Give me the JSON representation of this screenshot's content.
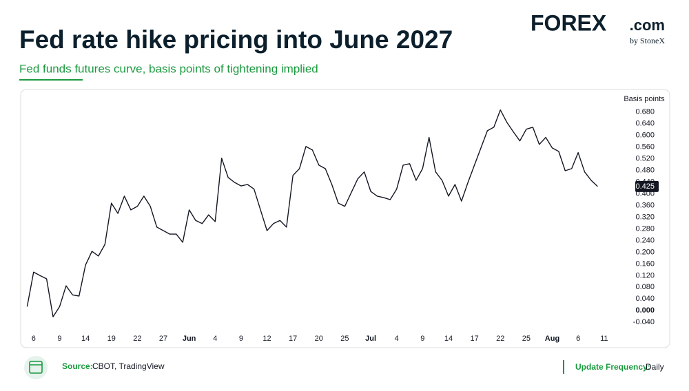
{
  "header": {
    "title": "Fed rate hike pricing into June 2027",
    "subtitle": "Fed funds futures curve, basis points of tightening implied"
  },
  "logo": {
    "name": "FOREX",
    "domain": ".com",
    "byline": "by StoneX"
  },
  "chart_data": {
    "type": "line",
    "y_label": "Basis points",
    "yaxis_position": "right",
    "grid": false,
    "xlim": [
      -1,
      92
    ],
    "ylim": [
      -0.07,
      0.75
    ],
    "xticks": [
      {
        "value": 1,
        "label": "6"
      },
      {
        "value": 5,
        "label": "9"
      },
      {
        "value": 9,
        "label": "14"
      },
      {
        "value": 13,
        "label": "19"
      },
      {
        "value": 17,
        "label": "22"
      },
      {
        "value": 21,
        "label": "27"
      },
      {
        "value": 25,
        "label": "Jun"
      },
      {
        "value": 29,
        "label": "4"
      },
      {
        "value": 33,
        "label": "9"
      },
      {
        "value": 37,
        "label": "12"
      },
      {
        "value": 41,
        "label": "17"
      },
      {
        "value": 45,
        "label": "20"
      },
      {
        "value": 49,
        "label": "25"
      },
      {
        "value": 53,
        "label": "Jul"
      },
      {
        "value": 57,
        "label": "4"
      },
      {
        "value": 61,
        "label": "9"
      },
      {
        "value": 65,
        "label": "14"
      },
      {
        "value": 69,
        "label": "17"
      },
      {
        "value": 73,
        "label": "22"
      },
      {
        "value": 77,
        "label": "25"
      },
      {
        "value": 81,
        "label": "Aug"
      },
      {
        "value": 85,
        "label": "6"
      },
      {
        "value": 89,
        "label": "11"
      }
    ],
    "yticks": [
      {
        "value": 0.68,
        "label": "0.680"
      },
      {
        "value": 0.64,
        "label": "0.640"
      },
      {
        "value": 0.6,
        "label": "0.600"
      },
      {
        "value": 0.56,
        "label": "0.560"
      },
      {
        "value": 0.52,
        "label": "0.520"
      },
      {
        "value": 0.48,
        "label": "0.480"
      },
      {
        "value": 0.44,
        "label": "0.440"
      },
      {
        "value": 0.4,
        "label": "0.400"
      },
      {
        "value": 0.36,
        "label": "0.360"
      },
      {
        "value": 0.32,
        "label": "0.320"
      },
      {
        "value": 0.28,
        "label": "0.280"
      },
      {
        "value": 0.24,
        "label": "0.240"
      },
      {
        "value": 0.2,
        "label": "0.200"
      },
      {
        "value": 0.16,
        "label": "0.160"
      },
      {
        "value": 0.12,
        "label": "0.120"
      },
      {
        "value": 0.08,
        "label": "0.080"
      },
      {
        "value": 0.04,
        "label": "0.040"
      },
      {
        "value": 0,
        "label": "0.000"
      },
      {
        "value": -0.04,
        "label": "-0.040"
      }
    ],
    "series": [
      {
        "color": "#131722",
        "values": [
          0.014,
          0.132,
          0.12,
          0.109,
          -0.021,
          0.014,
          0.085,
          0.054,
          0.05,
          0.156,
          0.203,
          0.187,
          0.227,
          0.368,
          0.333,
          0.392,
          0.345,
          0.357,
          0.392,
          0.357,
          0.286,
          0.274,
          0.262,
          0.262,
          0.234,
          0.345,
          0.309,
          0.298,
          0.328,
          0.305,
          0.522,
          0.456,
          0.439,
          0.427,
          0.432,
          0.416,
          0.345,
          0.274,
          0.298,
          0.309,
          0.286,
          0.463,
          0.486,
          0.562,
          0.55,
          0.498,
          0.486,
          0.432,
          0.368,
          0.357,
          0.404,
          0.451,
          0.475,
          0.408,
          0.392,
          0.387,
          0.38,
          0.416,
          0.498,
          0.503,
          0.446,
          0.486,
          0.593,
          0.475,
          0.446,
          0.392,
          0.432,
          0.375,
          0.439,
          0.498,
          0.557,
          0.616,
          0.628,
          0.687,
          0.645,
          0.612,
          0.581,
          0.621,
          0.628,
          0.569,
          0.593,
          0.557,
          0.545,
          0.479,
          0.486,
          0.541,
          0.475,
          0.446,
          0.425
        ]
      }
    ]
  },
  "footer": {
    "source_label": "Source:",
    "source": "CBOT, TradingView",
    "frequency_label": "Update Frequency:",
    "frequency": "Daily"
  }
}
